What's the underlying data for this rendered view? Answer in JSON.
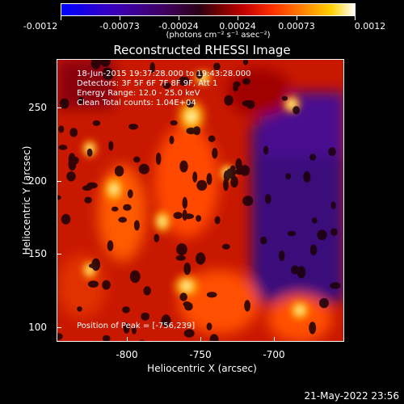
{
  "colorbar": {
    "tick_labels": [
      "-0.0012",
      "-0.00073",
      "-0.00024",
      "0.00024",
      "0.00073",
      "0.0012"
    ],
    "unit_label": "(photons cm⁻² s⁻¹ asec⁻²)"
  },
  "title": "Reconstructed RHESSI Image",
  "info": {
    "time_range": "18-Jun-2015 19:37:28.000 to 19:43:28.000",
    "detectors": "Detectors: 3F 5F 6F 7F 8F 9F, Att 1",
    "energy_range": "Energy Range: 12.0 - 25.0 keV",
    "algorithm": "Clean     Total counts: 1.04E+04",
    "peak_position": "Position of Peak = [-756,239]"
  },
  "axes": {
    "x_label": "Heliocentric X (arcsec)",
    "y_label": "Heliocentric Y (arcsec)",
    "x_ticks": [
      "-800",
      "-750",
      "-700"
    ],
    "y_ticks": [
      "100",
      "150",
      "200",
      "250"
    ]
  },
  "footer": {
    "timestamp": "21-May-2022 23:56"
  }
}
